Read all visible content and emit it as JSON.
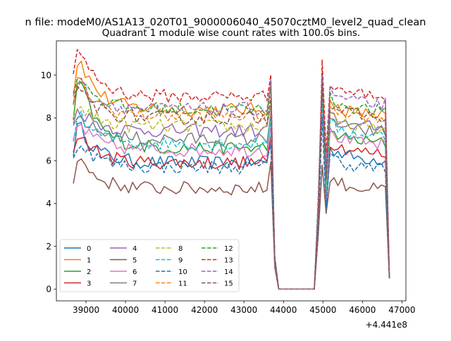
{
  "figure": {
    "suptitle": "n file: modeM0/AS1A13_020T01_9000006040_45070cztM0_level2_quad_clean",
    "title": "Quadrant 1 module wise count rates with 100.0s bins.",
    "offset_label": "+4.441e8"
  },
  "chart_data": {
    "type": "line",
    "title": "Quadrant 1 module wise count rates with 100.0s bins.",
    "xlabel": "",
    "ylabel": "",
    "x_offset": 444100000,
    "xlim": [
      38250,
      47100
    ],
    "ylim": [
      -0.55,
      11.6
    ],
    "xticks": [
      39000,
      40000,
      41000,
      42000,
      43000,
      44000,
      45000,
      46000,
      47000
    ],
    "xtick_labels": [
      "39000",
      "40000",
      "41000",
      "42000",
      "43000",
      "44000",
      "45000",
      "46000",
      "47000"
    ],
    "yticks": [
      0,
      2,
      4,
      6,
      8,
      10
    ],
    "ytick_labels": [
      "0",
      "2",
      "4",
      "6",
      "8",
      "10"
    ],
    "grid": false,
    "legend": {
      "placement": "lower-left",
      "columns": 4
    },
    "segments": [
      {
        "x_start": 38680,
        "x_end": 43680,
        "step": 100
      },
      {
        "x_start": 44880,
        "x_end": 46580,
        "step": 100
      }
    ],
    "series": [
      {
        "name": "0",
        "color": "#1f77b4",
        "dash": "solid",
        "level_seg1": 5.9,
        "level_seg2": 6.0,
        "peak_first": 7.5,
        "peak_second": 9.4,
        "tail_end": 0.6
      },
      {
        "name": "1",
        "color": "#ff7f0e",
        "dash": "solid",
        "level_seg1": 8.4,
        "level_seg2": 8.1,
        "peak_first": 10.6,
        "peak_second": 10.2,
        "tail_end": 0.5
      },
      {
        "name": "2",
        "color": "#2ca02c",
        "dash": "solid",
        "level_seg1": 6.6,
        "level_seg2": 6.8,
        "peak_first": 9.6,
        "peak_second": 9.4,
        "tail_end": 0.55
      },
      {
        "name": "3",
        "color": "#d62728",
        "dash": "solid",
        "level_seg1": 5.9,
        "level_seg2": 6.3,
        "peak_first": 7.2,
        "peak_second": 9.6,
        "tail_end": 0.5
      },
      {
        "name": "4",
        "color": "#9467bd",
        "dash": "solid",
        "level_seg1": 7.4,
        "level_seg2": 7.5,
        "peak_first": 8.3,
        "peak_second": 9.2,
        "tail_end": 0.55
      },
      {
        "name": "5",
        "color": "#8c564b",
        "dash": "solid",
        "level_seg1": 4.7,
        "level_seg2": 4.6,
        "peak_first": 6.0,
        "peak_second": 5.8,
        "tail_end": 0.5
      },
      {
        "name": "6",
        "color": "#e377c2",
        "dash": "solid",
        "level_seg1": 6.5,
        "level_seg2": 6.7,
        "peak_first": 7.6,
        "peak_second": 8.7,
        "tail_end": 0.55
      },
      {
        "name": "7",
        "color": "#7f7f7f",
        "dash": "solid",
        "level_seg1": 7.0,
        "level_seg2": 7.3,
        "peak_first": 8.0,
        "peak_second": 9.1,
        "tail_end": 0.55
      },
      {
        "name": "8",
        "color": "#bcbd22",
        "dash": "dashed",
        "level_seg1": 7.6,
        "level_seg2": 7.4,
        "peak_first": 8.5,
        "peak_second": 9.0,
        "tail_end": 0.6
      },
      {
        "name": "9",
        "color": "#17becf",
        "dash": "dashed",
        "level_seg1": 6.8,
        "level_seg2": 7.1,
        "peak_first": 8.0,
        "peak_second": 9.0,
        "tail_end": 0.55
      },
      {
        "name": "10",
        "color": "#1f77b4",
        "dash": "dashed",
        "level_seg1": 5.7,
        "level_seg2": 5.6,
        "peak_first": 6.8,
        "peak_second": 8.0,
        "tail_end": 0.55
      },
      {
        "name": "11",
        "color": "#ff7f0e",
        "dash": "dashed",
        "level_seg1": 8.1,
        "level_seg2": 8.0,
        "peak_first": 9.6,
        "peak_second": 9.9,
        "tail_end": 0.6
      },
      {
        "name": "12",
        "color": "#2ca02c",
        "dash": "dashed",
        "level_seg1": 8.4,
        "level_seg2": 8.3,
        "peak_first": 9.9,
        "peak_second": 9.8,
        "tail_end": 0.6
      },
      {
        "name": "13",
        "color": "#d62728",
        "dash": "dashed",
        "level_seg1": 9.0,
        "level_seg2": 9.0,
        "peak_first": 11.1,
        "peak_second": 10.7,
        "tail_end": 0.6
      },
      {
        "name": "14",
        "color": "#9467bd",
        "dash": "dashed",
        "level_seg1": 8.4,
        "level_seg2": 8.6,
        "peak_first": 9.6,
        "peak_second": 10.0,
        "tail_end": 0.6
      },
      {
        "name": "15",
        "color": "#8c564b",
        "dash": "dashed",
        "level_seg1": 8.0,
        "level_seg2": 8.0,
        "peak_first": 9.2,
        "peak_second": 9.6,
        "tail_end": 0.6
      }
    ]
  }
}
